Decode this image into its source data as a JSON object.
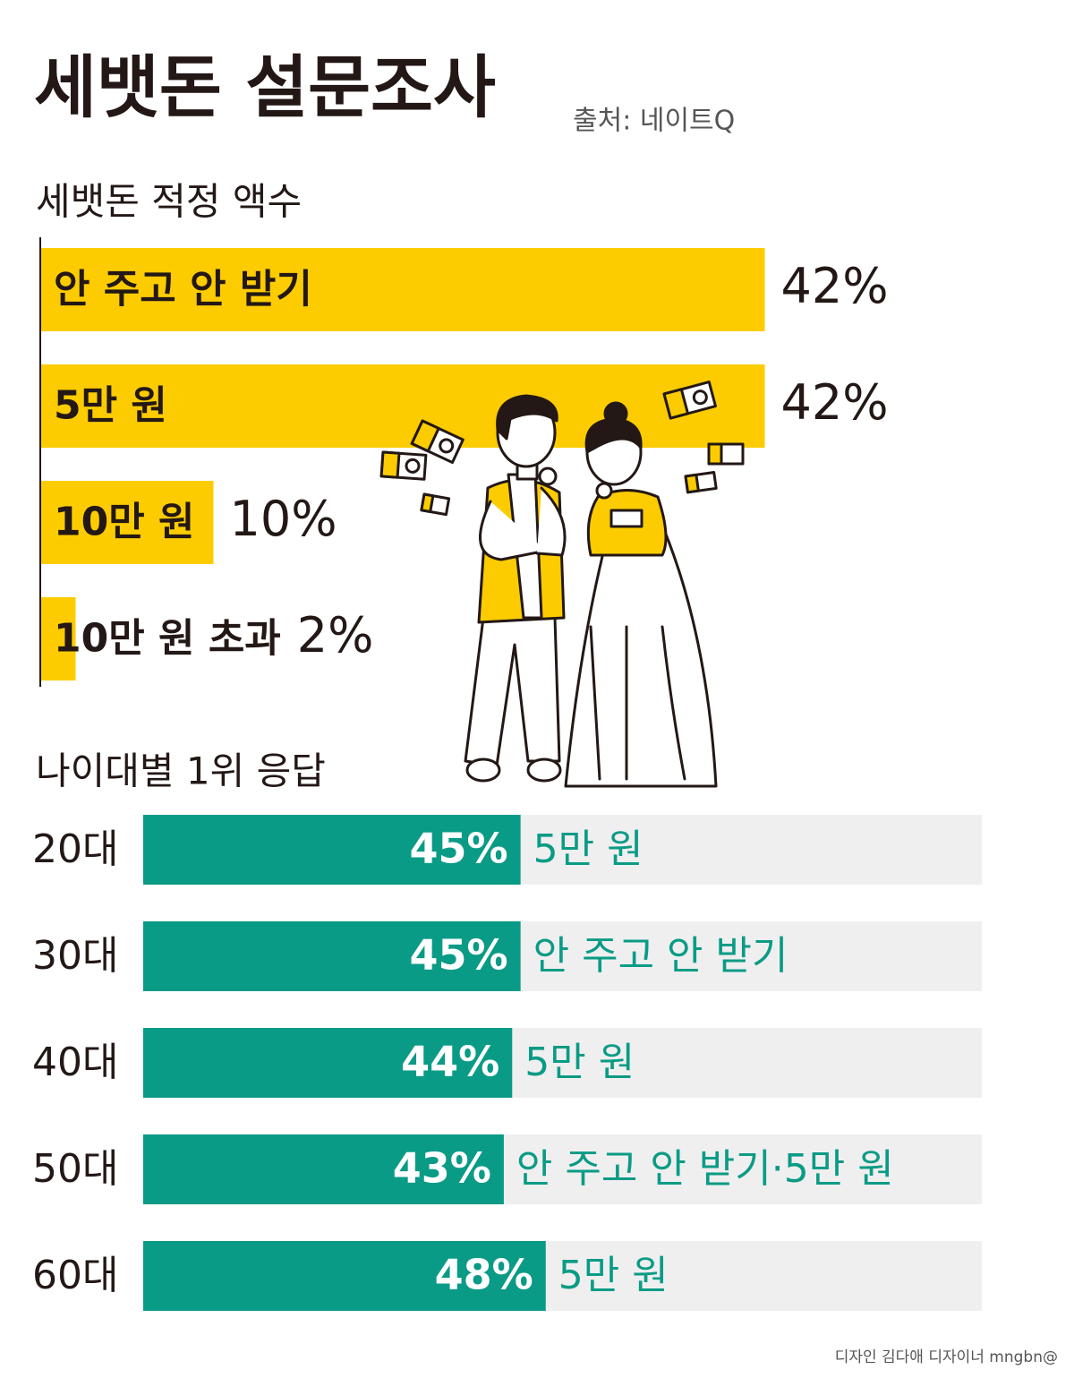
{
  "title": "세뱃돈 설문조사",
  "source": "출처: 네이트Q",
  "credit": "디자인 김다애 디자이너 mngbn@",
  "chart_data": [
    {
      "type": "bar",
      "orientation": "horizontal",
      "subtitle": "세뱃돈 적정 액수",
      "categories": [
        "안 주고 안 받기",
        "5만 원",
        "10만 원",
        "10만 원 초과"
      ],
      "values": [
        42,
        42,
        10,
        2
      ],
      "value_labels": [
        "42%",
        "42%",
        "10%",
        "2%"
      ],
      "color": "#fccc00"
    },
    {
      "type": "bar",
      "orientation": "horizontal",
      "subtitle": "나이대별 1위 응답",
      "categories": [
        "20대",
        "30대",
        "40대",
        "50대",
        "60대"
      ],
      "values": [
        45,
        45,
        44,
        43,
        48
      ],
      "value_labels": [
        "45%",
        "45%",
        "44%",
        "43%",
        "48%"
      ],
      "answers": [
        "5만 원",
        "안 주고 안 받기",
        "5만 원",
        "안 주고 안 받기·5만 원",
        "5만 원"
      ],
      "xlim": [
        0,
        100
      ],
      "color": "#0a9b86",
      "track_color": "#efefef"
    }
  ]
}
